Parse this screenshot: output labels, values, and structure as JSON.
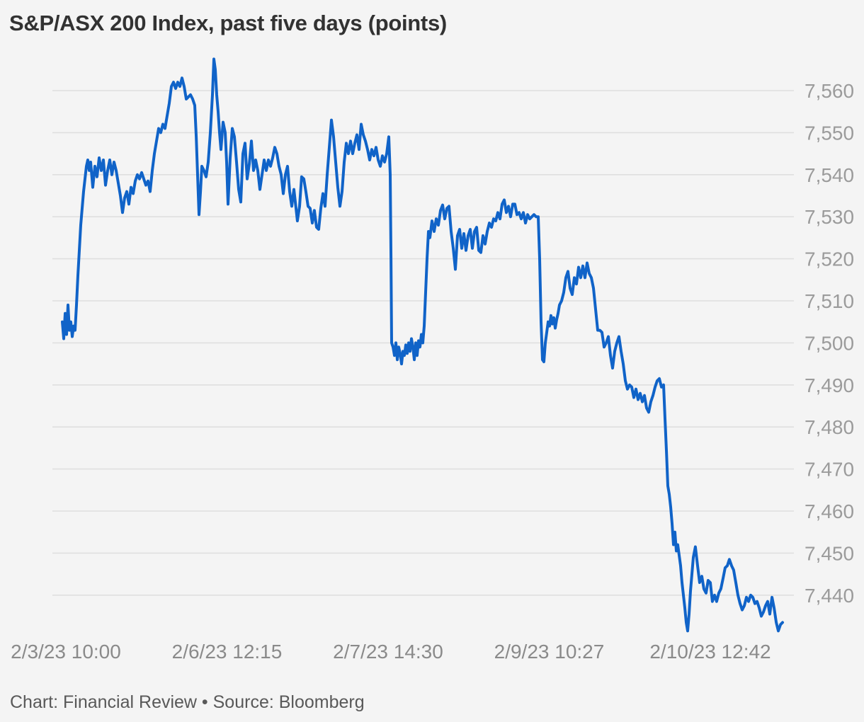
{
  "chart_data": {
    "type": "line",
    "title": "S&P/ASX 200 Index, past five days (points)",
    "source_line": "Chart: Financial Review • Source: Bloomberg",
    "series_name": "S&P/ASX 200 Index",
    "unit": "points",
    "grid": true,
    "legend": false,
    "background_color": "#f4f4f4",
    "grid_color": "#dfdfdf",
    "line_color": "#1063c8",
    "title_color": "#323232",
    "y_label_color": "#9b9b9b",
    "x_label_color": "#8a8a8a",
    "footer_color": "#595959",
    "ylim": [
      7425,
      7572
    ],
    "y_ticks": [
      {
        "value": 7560,
        "label": "7,560"
      },
      {
        "value": 7550,
        "label": "7,550"
      },
      {
        "value": 7540,
        "label": "7,540"
      },
      {
        "value": 7530,
        "label": "7,530"
      },
      {
        "value": 7520,
        "label": "7,520"
      },
      {
        "value": 7510,
        "label": "7,510"
      },
      {
        "value": 7500,
        "label": "7,500"
      },
      {
        "value": 7490,
        "label": "7,490"
      },
      {
        "value": 7480,
        "label": "7,480"
      },
      {
        "value": 7470,
        "label": "7,470"
      },
      {
        "value": 7460,
        "label": "7,460"
      },
      {
        "value": 7450,
        "label": "7,450"
      },
      {
        "value": 7440,
        "label": "7,440"
      }
    ],
    "x_ticks": [
      {
        "label": "2/3/23 10:00",
        "t": 0.0049
      },
      {
        "label": "2/6/23 12:15",
        "t": 0.2286
      },
      {
        "label": "2/7/23 14:30",
        "t": 0.4523
      },
      {
        "label": "2/9/23 10:27",
        "t": 0.676
      },
      {
        "label": "2/10/23 12:42",
        "t": 0.8997
      }
    ],
    "points": [
      [
        0.0,
        7505
      ],
      [
        0.002,
        7501
      ],
      [
        0.0039,
        7507
      ],
      [
        0.0059,
        7502
      ],
      [
        0.0079,
        7509
      ],
      [
        0.0098,
        7503
      ],
      [
        0.0118,
        7505
      ],
      [
        0.0138,
        7501.5
      ],
      [
        0.0157,
        7504
      ],
      [
        0.0177,
        7503
      ],
      [
        0.0197,
        7509
      ],
      [
        0.0216,
        7516
      ],
      [
        0.0236,
        7522
      ],
      [
        0.0256,
        7528
      ],
      [
        0.0275,
        7532
      ],
      [
        0.0295,
        7536
      ],
      [
        0.0315,
        7539
      ],
      [
        0.0334,
        7542
      ],
      [
        0.0354,
        7543.5
      ],
      [
        0.0374,
        7541
      ],
      [
        0.0393,
        7543
      ],
      [
        0.0423,
        7537
      ],
      [
        0.0452,
        7542
      ],
      [
        0.0482,
        7539.5
      ],
      [
        0.0511,
        7544
      ],
      [
        0.0541,
        7541
      ],
      [
        0.057,
        7543.5
      ],
      [
        0.06,
        7537.5
      ],
      [
        0.0629,
        7541
      ],
      [
        0.0659,
        7543.5
      ],
      [
        0.0688,
        7540
      ],
      [
        0.0718,
        7543
      ],
      [
        0.0747,
        7541
      ],
      [
        0.0777,
        7538
      ],
      [
        0.0806,
        7535
      ],
      [
        0.0836,
        7531
      ],
      [
        0.0865,
        7534.5
      ],
      [
        0.0895,
        7536
      ],
      [
        0.0924,
        7533
      ],
      [
        0.0954,
        7537
      ],
      [
        0.0983,
        7535.5
      ],
      [
        0.1013,
        7538.5
      ],
      [
        0.1042,
        7540
      ],
      [
        0.1072,
        7539
      ],
      [
        0.1101,
        7540.5
      ],
      [
        0.1131,
        7539
      ],
      [
        0.116,
        7537.5
      ],
      [
        0.119,
        7538.5
      ],
      [
        0.1219,
        7536
      ],
      [
        0.1249,
        7541
      ],
      [
        0.1278,
        7545
      ],
      [
        0.1308,
        7548
      ],
      [
        0.1337,
        7551
      ],
      [
        0.1367,
        7550
      ],
      [
        0.1396,
        7552
      ],
      [
        0.1426,
        7551
      ],
      [
        0.1455,
        7554
      ],
      [
        0.1485,
        7557
      ],
      [
        0.1514,
        7561
      ],
      [
        0.1544,
        7562
      ],
      [
        0.1573,
        7560.5
      ],
      [
        0.1603,
        7562
      ],
      [
        0.1632,
        7561
      ],
      [
        0.1662,
        7563
      ],
      [
        0.1691,
        7561
      ],
      [
        0.1721,
        7558
      ],
      [
        0.175,
        7558.5
      ],
      [
        0.178,
        7559
      ],
      [
        0.1809,
        7558
      ],
      [
        0.1839,
        7556.5
      ],
      [
        0.1859,
        7549
      ],
      [
        0.1878,
        7540
      ],
      [
        0.1898,
        7530.5
      ],
      [
        0.1918,
        7536
      ],
      [
        0.1937,
        7542
      ],
      [
        0.1967,
        7541
      ],
      [
        0.1996,
        7539.5
      ],
      [
        0.2026,
        7543
      ],
      [
        0.2055,
        7550
      ],
      [
        0.2085,
        7559
      ],
      [
        0.2104,
        7567.5
      ],
      [
        0.2124,
        7565
      ],
      [
        0.2144,
        7559
      ],
      [
        0.2163,
        7555
      ],
      [
        0.2183,
        7550
      ],
      [
        0.2203,
        7546
      ],
      [
        0.2232,
        7552.5
      ],
      [
        0.2262,
        7550
      ],
      [
        0.2281,
        7543
      ],
      [
        0.2301,
        7533
      ],
      [
        0.233,
        7544
      ],
      [
        0.236,
        7551
      ],
      [
        0.2389,
        7549
      ],
      [
        0.2419,
        7543
      ],
      [
        0.2448,
        7536.5
      ],
      [
        0.2478,
        7533.5
      ],
      [
        0.2507,
        7545
      ],
      [
        0.2537,
        7547.5
      ],
      [
        0.2566,
        7539
      ],
      [
        0.2596,
        7542.5
      ],
      [
        0.2625,
        7548
      ],
      [
        0.2655,
        7541
      ],
      [
        0.2684,
        7543.5
      ],
      [
        0.2714,
        7541
      ],
      [
        0.2743,
        7536.5
      ],
      [
        0.2773,
        7540
      ],
      [
        0.2802,
        7543.5
      ],
      [
        0.2832,
        7541
      ],
      [
        0.2861,
        7543.5
      ],
      [
        0.2891,
        7542
      ],
      [
        0.292,
        7544
      ],
      [
        0.295,
        7546.5
      ],
      [
        0.2979,
        7545
      ],
      [
        0.3009,
        7542
      ],
      [
        0.3038,
        7540
      ],
      [
        0.3068,
        7535.5
      ],
      [
        0.3097,
        7540
      ],
      [
        0.3127,
        7542
      ],
      [
        0.3156,
        7536
      ],
      [
        0.3186,
        7532.5
      ],
      [
        0.3215,
        7536.5
      ],
      [
        0.3245,
        7532
      ],
      [
        0.3264,
        7529
      ],
      [
        0.3294,
        7532.5
      ],
      [
        0.3323,
        7539.5
      ],
      [
        0.3353,
        7539
      ],
      [
        0.3382,
        7536
      ],
      [
        0.3412,
        7532.5
      ],
      [
        0.3441,
        7532
      ],
      [
        0.3471,
        7528.5
      ],
      [
        0.35,
        7531.5
      ],
      [
        0.353,
        7527.5
      ],
      [
        0.3559,
        7527
      ],
      [
        0.3589,
        7532
      ],
      [
        0.3618,
        7535.5
      ],
      [
        0.3648,
        7532.5
      ],
      [
        0.3677,
        7540
      ],
      [
        0.3707,
        7546.5
      ],
      [
        0.3736,
        7553
      ],
      [
        0.3766,
        7549
      ],
      [
        0.3795,
        7543
      ],
      [
        0.3825,
        7537
      ],
      [
        0.3854,
        7532.5
      ],
      [
        0.3884,
        7536
      ],
      [
        0.3913,
        7543
      ],
      [
        0.3943,
        7547.5
      ],
      [
        0.3972,
        7545
      ],
      [
        0.4002,
        7548
      ],
      [
        0.4031,
        7545
      ],
      [
        0.4061,
        7547.5
      ],
      [
        0.409,
        7549.5
      ],
      [
        0.412,
        7546
      ],
      [
        0.4149,
        7552
      ],
      [
        0.4179,
        7549.5
      ],
      [
        0.4208,
        7548
      ],
      [
        0.4238,
        7546
      ],
      [
        0.4267,
        7543.5
      ],
      [
        0.4297,
        7546
      ],
      [
        0.4326,
        7544.5
      ],
      [
        0.4356,
        7546.5
      ],
      [
        0.4385,
        7543.5
      ],
      [
        0.4415,
        7542
      ],
      [
        0.4444,
        7544.5
      ],
      [
        0.4474,
        7543
      ],
      [
        0.4503,
        7545
      ],
      [
        0.4533,
        7549
      ],
      [
        0.4553,
        7540
      ],
      [
        0.4563,
        7520
      ],
      [
        0.4572,
        7500
      ],
      [
        0.4592,
        7499
      ],
      [
        0.4612,
        7497
      ],
      [
        0.4631,
        7500
      ],
      [
        0.4651,
        7496
      ],
      [
        0.4671,
        7499
      ],
      [
        0.469,
        7497.5
      ],
      [
        0.471,
        7495
      ],
      [
        0.473,
        7498
      ],
      [
        0.4749,
        7497
      ],
      [
        0.4769,
        7499.5
      ],
      [
        0.4789,
        7497.5
      ],
      [
        0.4808,
        7500
      ],
      [
        0.4828,
        7498
      ],
      [
        0.4848,
        7501
      ],
      [
        0.4867,
        7499
      ],
      [
        0.4887,
        7496
      ],
      [
        0.4907,
        7500
      ],
      [
        0.4926,
        7497
      ],
      [
        0.4946,
        7500.5
      ],
      [
        0.4966,
        7499
      ],
      [
        0.4985,
        7502
      ],
      [
        0.5005,
        7500
      ],
      [
        0.5025,
        7504
      ],
      [
        0.5044,
        7512
      ],
      [
        0.5064,
        7520
      ],
      [
        0.5084,
        7526.5
      ],
      [
        0.5103,
        7525
      ],
      [
        0.5133,
        7529
      ],
      [
        0.5162,
        7526.5
      ],
      [
        0.5192,
        7529.5
      ],
      [
        0.5221,
        7528
      ],
      [
        0.5251,
        7531.5
      ],
      [
        0.528,
        7532.8
      ],
      [
        0.531,
        7529.5
      ],
      [
        0.5339,
        7532
      ],
      [
        0.5369,
        7532.5
      ],
      [
        0.5398,
        7526.5
      ],
      [
        0.5428,
        7522.5
      ],
      [
        0.5457,
        7517.5
      ],
      [
        0.5487,
        7525.5
      ],
      [
        0.5516,
        7527
      ],
      [
        0.5546,
        7522.5
      ],
      [
        0.5575,
        7526
      ],
      [
        0.5605,
        7522
      ],
      [
        0.5634,
        7525.5
      ],
      [
        0.5664,
        7527
      ],
      [
        0.5693,
        7522.5
      ],
      [
        0.5723,
        7526.5
      ],
      [
        0.5752,
        7527.5
      ],
      [
        0.5782,
        7522
      ],
      [
        0.5811,
        7521.5
      ],
      [
        0.5841,
        7525.5
      ],
      [
        0.587,
        7523.5
      ],
      [
        0.59,
        7526.5
      ],
      [
        0.5929,
        7528.5
      ],
      [
        0.5959,
        7527.5
      ],
      [
        0.5988,
        7529.5
      ],
      [
        0.6018,
        7529
      ],
      [
        0.6047,
        7531
      ],
      [
        0.6077,
        7529.5
      ],
      [
        0.6106,
        7533
      ],
      [
        0.6136,
        7534
      ],
      [
        0.6165,
        7531
      ],
      [
        0.6195,
        7532.5
      ],
      [
        0.6224,
        7530
      ],
      [
        0.6254,
        7533
      ],
      [
        0.6283,
        7533
      ],
      [
        0.6313,
        7530.5
      ],
      [
        0.6342,
        7531
      ],
      [
        0.6372,
        7529.5
      ],
      [
        0.6401,
        7531
      ],
      [
        0.6431,
        7528.5
      ],
      [
        0.646,
        7530.5
      ],
      [
        0.649,
        7529.5
      ],
      [
        0.6519,
        7530
      ],
      [
        0.6549,
        7530.5
      ],
      [
        0.6578,
        7530
      ],
      [
        0.6608,
        7530
      ],
      [
        0.6627,
        7520
      ],
      [
        0.6647,
        7505
      ],
      [
        0.6667,
        7496
      ],
      [
        0.6686,
        7495.5
      ],
      [
        0.6706,
        7500
      ],
      [
        0.6726,
        7502.5
      ],
      [
        0.6745,
        7505
      ],
      [
        0.6765,
        7504
      ],
      [
        0.6785,
        7506.5
      ],
      [
        0.6804,
        7504.5
      ],
      [
        0.6824,
        7506
      ],
      [
        0.6844,
        7503.5
      ],
      [
        0.6863,
        7505.5
      ],
      [
        0.6883,
        7507
      ],
      [
        0.6903,
        7509
      ],
      [
        0.6932,
        7510
      ],
      [
        0.6962,
        7512
      ],
      [
        0.6991,
        7515.5
      ],
      [
        0.7021,
        7517
      ],
      [
        0.705,
        7513
      ],
      [
        0.708,
        7511.5
      ],
      [
        0.7109,
        7515.5
      ],
      [
        0.7139,
        7514
      ],
      [
        0.7168,
        7518
      ],
      [
        0.7198,
        7515.5
      ],
      [
        0.7227,
        7518.3
      ],
      [
        0.7257,
        7515.5
      ],
      [
        0.7286,
        7519
      ],
      [
        0.7316,
        7516.5
      ],
      [
        0.7345,
        7515.5
      ],
      [
        0.7375,
        7513
      ],
      [
        0.7404,
        7508
      ],
      [
        0.7434,
        7503
      ],
      [
        0.7463,
        7503
      ],
      [
        0.7493,
        7502.5
      ],
      [
        0.7522,
        7499
      ],
      [
        0.7552,
        7500
      ],
      [
        0.7581,
        7501.5
      ],
      [
        0.7611,
        7497
      ],
      [
        0.764,
        7494
      ],
      [
        0.767,
        7498
      ],
      [
        0.7699,
        7500
      ],
      [
        0.7729,
        7501.5
      ],
      [
        0.7758,
        7498
      ],
      [
        0.7788,
        7495
      ],
      [
        0.7817,
        7491
      ],
      [
        0.7847,
        7489
      ],
      [
        0.7876,
        7490
      ],
      [
        0.7906,
        7489.5
      ],
      [
        0.7935,
        7487
      ],
      [
        0.7965,
        7489
      ],
      [
        0.7994,
        7486.5
      ],
      [
        0.8024,
        7488
      ],
      [
        0.8053,
        7486
      ],
      [
        0.8083,
        7487.5
      ],
      [
        0.8112,
        7484.5
      ],
      [
        0.8142,
        7483.5
      ],
      [
        0.8171,
        7486
      ],
      [
        0.8201,
        7487.5
      ],
      [
        0.823,
        7489.5
      ],
      [
        0.826,
        7491
      ],
      [
        0.8289,
        7491.5
      ],
      [
        0.8319,
        7489.5
      ],
      [
        0.8348,
        7490
      ],
      [
        0.8368,
        7482
      ],
      [
        0.8388,
        7474
      ],
      [
        0.8407,
        7466
      ],
      [
        0.8427,
        7464
      ],
      [
        0.8446,
        7461
      ],
      [
        0.8466,
        7457
      ],
      [
        0.8486,
        7452
      ],
      [
        0.8505,
        7455
      ],
      [
        0.8525,
        7450.5
      ],
      [
        0.8545,
        7452
      ],
      [
        0.8564,
        7449.5
      ],
      [
        0.8584,
        7447
      ],
      [
        0.8604,
        7443
      ],
      [
        0.8623,
        7440
      ],
      [
        0.8643,
        7437
      ],
      [
        0.8663,
        7433.5
      ],
      [
        0.8682,
        7431.5
      ],
      [
        0.8702,
        7435.5
      ],
      [
        0.8722,
        7441
      ],
      [
        0.8741,
        7445
      ],
      [
        0.8761,
        7449
      ],
      [
        0.879,
        7451.5
      ],
      [
        0.882,
        7447
      ],
      [
        0.8849,
        7443
      ],
      [
        0.8879,
        7444.5
      ],
      [
        0.8908,
        7441.5
      ],
      [
        0.8938,
        7440.5
      ],
      [
        0.8967,
        7443.5
      ],
      [
        0.8997,
        7443
      ],
      [
        0.9026,
        7438.5
      ],
      [
        0.9056,
        7440
      ],
      [
        0.9085,
        7438.5
      ],
      [
        0.9115,
        7440.5
      ],
      [
        0.9144,
        7441.5
      ],
      [
        0.9174,
        7444
      ],
      [
        0.9203,
        7446.5
      ],
      [
        0.9233,
        7447
      ],
      [
        0.9262,
        7448.5
      ],
      [
        0.9292,
        7447
      ],
      [
        0.9321,
        7446
      ],
      [
        0.9351,
        7443
      ],
      [
        0.9381,
        7440
      ],
      [
        0.941,
        7438
      ],
      [
        0.944,
        7436.5
      ],
      [
        0.9469,
        7437.5
      ],
      [
        0.9499,
        7439.5
      ],
      [
        0.9528,
        7438.5
      ],
      [
        0.9558,
        7440
      ],
      [
        0.9587,
        7439.5
      ],
      [
        0.9617,
        7438
      ],
      [
        0.9646,
        7438.5
      ],
      [
        0.9676,
        7437
      ],
      [
        0.9705,
        7435
      ],
      [
        0.9735,
        7436
      ],
      [
        0.9764,
        7437.5
      ],
      [
        0.9794,
        7438.5
      ],
      [
        0.9823,
        7435.5
      ],
      [
        0.9853,
        7439.5
      ],
      [
        0.9882,
        7437
      ],
      [
        0.9912,
        7433.5
      ],
      [
        0.9941,
        7431.5
      ],
      [
        0.9971,
        7433
      ],
      [
        1.0,
        7433.5
      ]
    ]
  }
}
